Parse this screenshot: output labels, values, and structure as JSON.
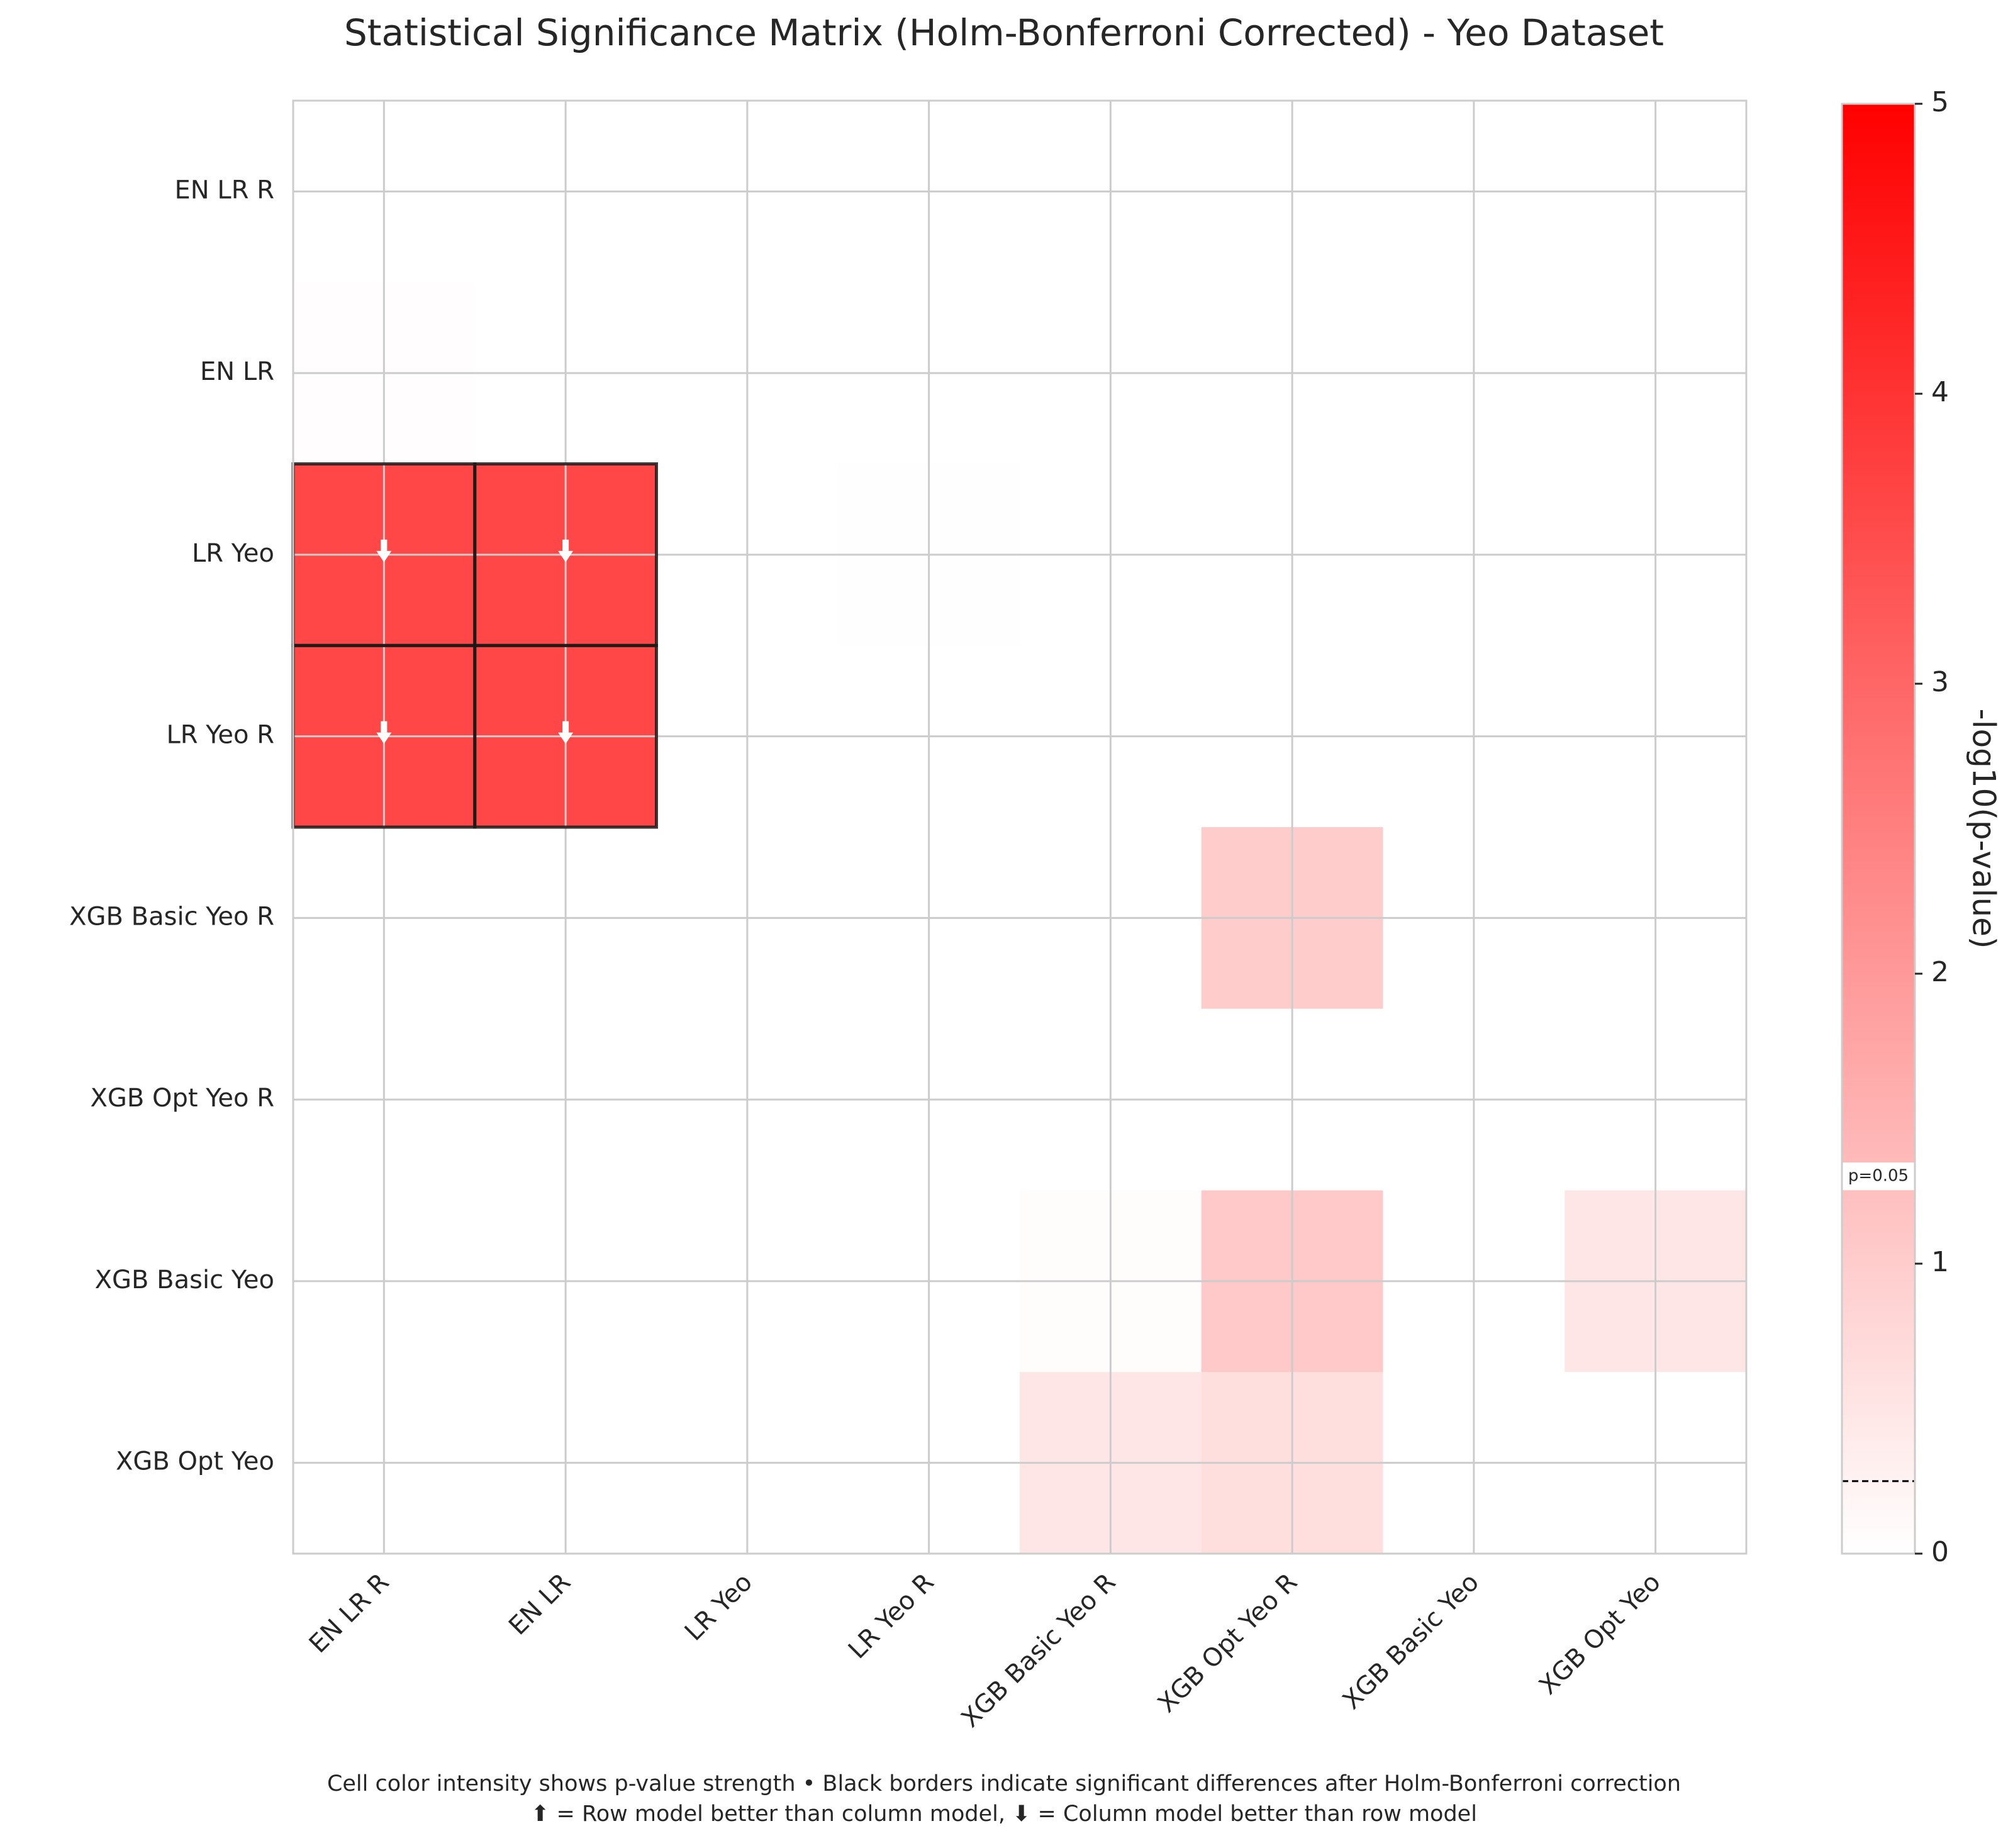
{
  "chart_data": {
    "type": "heatmap",
    "title": "Statistical Significance Matrix (Holm-Bonferroni Corrected) - Yeo Dataset",
    "row_labels": [
      "EN LR R",
      "EN LR",
      "LR Yeo",
      "LR Yeo R",
      "XGB Basic Yeo R",
      "XGB Opt Yeo R",
      "XGB Basic Yeo",
      "XGB Opt Yeo"
    ],
    "col_labels": [
      "EN LR R",
      "EN LR",
      "LR Yeo",
      "LR Yeo R",
      "XGB Basic Yeo R",
      "XGB Opt Yeo R",
      "XGB Basic Yeo",
      "XGB Opt Yeo"
    ],
    "values": [
      [
        0,
        0,
        0,
        0,
        0,
        0,
        0,
        0
      ],
      [
        0.03,
        0,
        0,
        0,
        0,
        0,
        0,
        0
      ],
      [
        3.6,
        3.6,
        0,
        0.01,
        0,
        0,
        0,
        0
      ],
      [
        3.6,
        3.6,
        0,
        0,
        0,
        0,
        0,
        0
      ],
      [
        0,
        0,
        0,
        0,
        0,
        1.0,
        0,
        0
      ],
      [
        0,
        0,
        0,
        0,
        0,
        0,
        0,
        0
      ],
      [
        0,
        0,
        0,
        0,
        0.05,
        1.05,
        0,
        0.5
      ],
      [
        0,
        0,
        0,
        0,
        0.5,
        0.65,
        0,
        0
      ]
    ],
    "significant": [
      [
        2,
        0
      ],
      [
        2,
        1
      ],
      [
        3,
        0
      ],
      [
        3,
        1
      ]
    ],
    "arrows": [
      {
        "row": 2,
        "col": 0,
        "direction": "down"
      },
      {
        "row": 2,
        "col": 1,
        "direction": "down"
      },
      {
        "row": 3,
        "col": 0,
        "direction": "down"
      },
      {
        "row": 3,
        "col": 1,
        "direction": "down"
      }
    ],
    "colorbar": {
      "label": "-log10(p-value)",
      "range": [
        0,
        5
      ],
      "ticks": [
        0,
        1,
        2,
        3,
        4,
        5
      ],
      "threshold_label": "p=0.05",
      "threshold_value": 1.301,
      "dashed_line_value": 0.25,
      "low_color": "#ffffff",
      "high_color": "#ff0000"
    },
    "grid": true
  },
  "caption": {
    "line1": "Cell color intensity shows p-value strength • Black borders indicate significant differences after Holm-Bonferroni correction",
    "line2": "⬆ = Row model better than column model, ⬇ = Column model better than row model"
  }
}
